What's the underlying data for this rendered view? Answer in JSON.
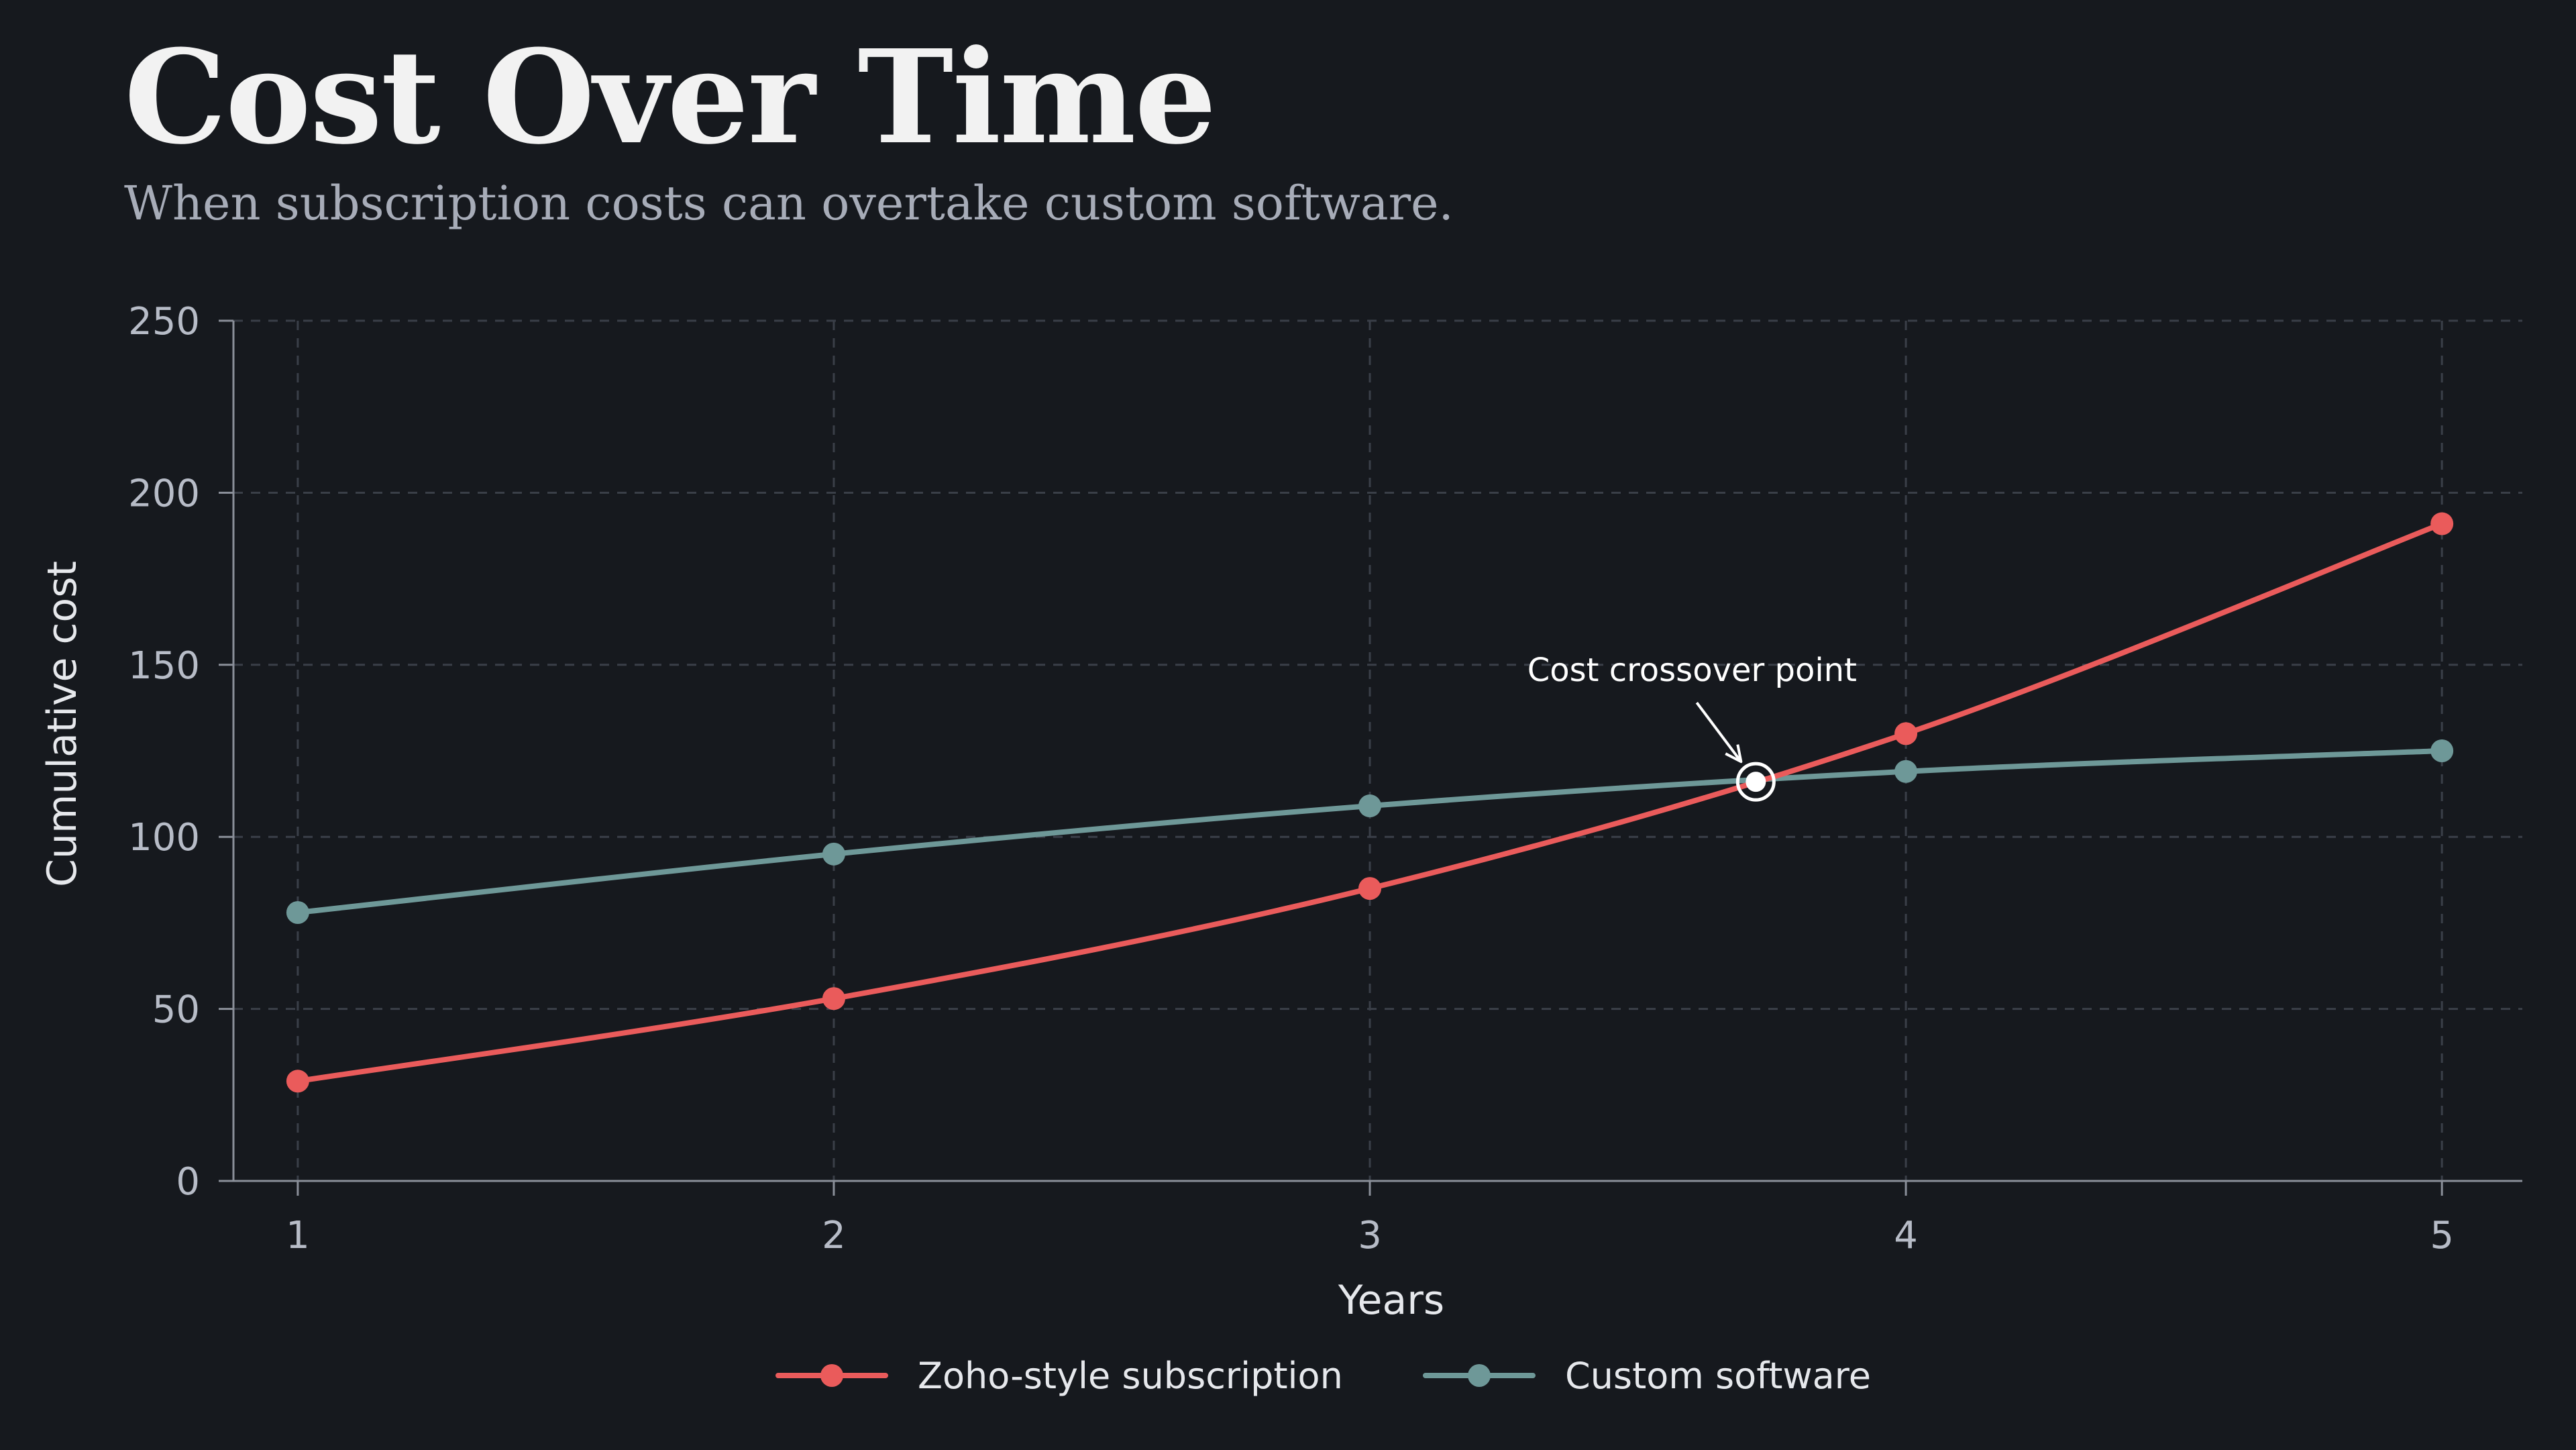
{
  "header": {
    "title": "Cost Over Time",
    "subtitle": "When subscription costs can overtake custom software."
  },
  "colors": {
    "background": "#16191e",
    "grid": "#3a3f48",
    "axis": "#8a8f99",
    "subscription": "#ea5b5b",
    "custom": "#6e9898",
    "crossover": "#ffffff"
  },
  "chart_data": {
    "type": "line",
    "title": "Cost Over Time",
    "subtitle": "When subscription costs can overtake custom software.",
    "xlabel": "Years",
    "ylabel": "Cumulative cost",
    "x": [
      1,
      2,
      3,
      4,
      5
    ],
    "xlim": [
      0.88,
      5.15
    ],
    "ylim": [
      0,
      250
    ],
    "xticks": [
      1,
      2,
      3,
      4,
      5
    ],
    "yticks": [
      0,
      50,
      100,
      150,
      200,
      250
    ],
    "grid": true,
    "legend_position": "bottom-center",
    "series": [
      {
        "name": "Zoho-style subscription",
        "values": [
          29,
          53,
          85,
          130,
          191
        ],
        "color": "#ea5b5b"
      },
      {
        "name": "Custom software",
        "values": [
          78,
          95,
          109,
          119,
          125
        ],
        "color": "#6e9898"
      }
    ],
    "annotations": [
      {
        "text": "Cost crossover point",
        "x": 3.72,
        "y": 116
      }
    ]
  }
}
